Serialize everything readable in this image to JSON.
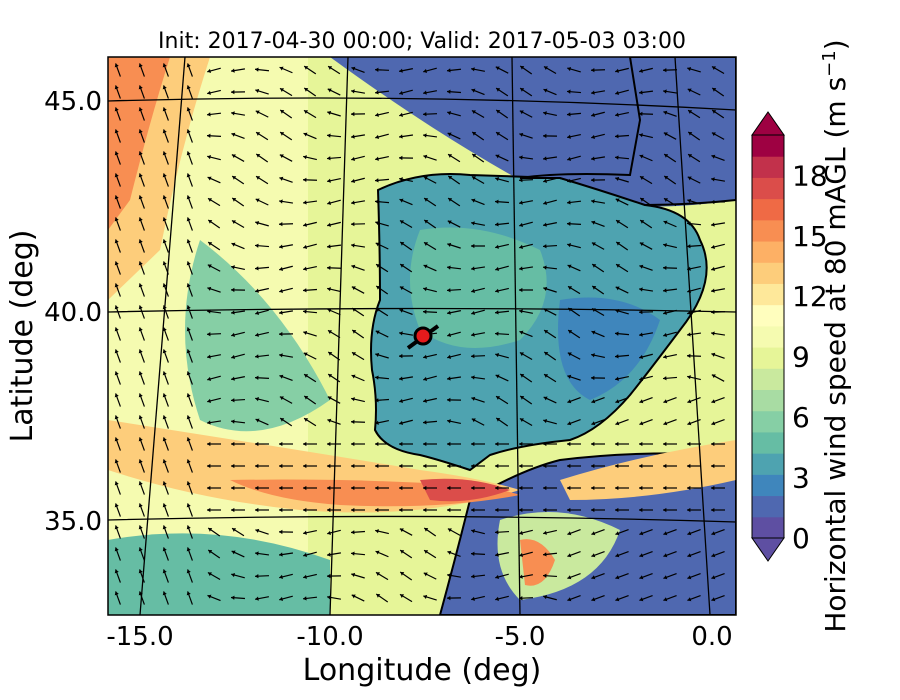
{
  "title": "Init: 2017-04-30 00:00; Valid: 2017-05-03 03:00",
  "map": {
    "xlabel": "Longitude (deg)",
    "ylabel": "Latitude (deg)",
    "x_ticks": [
      "-15.0",
      "-10.0",
      "-5.0",
      "0.0"
    ],
    "y_ticks": [
      "45.0",
      "40.0",
      "35.0"
    ],
    "lon_range": [
      -16,
      0
    ],
    "lat_range": [
      33,
      46
    ],
    "marker": {
      "lon": -7.6,
      "lat": 39.3,
      "color": "#e41a1c"
    }
  },
  "colorbar": {
    "label": "Horizontal wind speed at 80 mAGL (m s",
    "label_exp": "−1",
    "label_close": ")",
    "ticks": [
      "0",
      "3",
      "6",
      "9",
      "12",
      "15",
      "18"
    ],
    "tick_values": [
      0,
      3,
      6,
      9,
      12,
      15,
      18
    ],
    "range": [
      0,
      20
    ],
    "colors": [
      "#5e4fa2",
      "#4f68b0",
      "#3f86bc",
      "#4ea3b0",
      "#66bda4",
      "#86cfa5",
      "#a8dca3",
      "#c9e99e",
      "#e6f598",
      "#f5fbb0",
      "#fffebe",
      "#fee89a",
      "#fdcd7b",
      "#fdb065",
      "#f88e52",
      "#ef6a45",
      "#db4d4a",
      "#c2314b",
      "#9e0142"
    ]
  },
  "chart_data": {
    "type": "heatmap",
    "title": "Init: 2017-04-30 00:00; Valid: 2017-05-03 03:00",
    "xlabel": "Longitude (deg)",
    "ylabel": "Latitude (deg)",
    "xlim": [
      -16,
      0
    ],
    "ylim": [
      33,
      46
    ],
    "colorbar_label": "Horizontal wind speed at 80 mAGL (m s−1)",
    "colorbar_range": [
      0,
      20
    ]
  }
}
